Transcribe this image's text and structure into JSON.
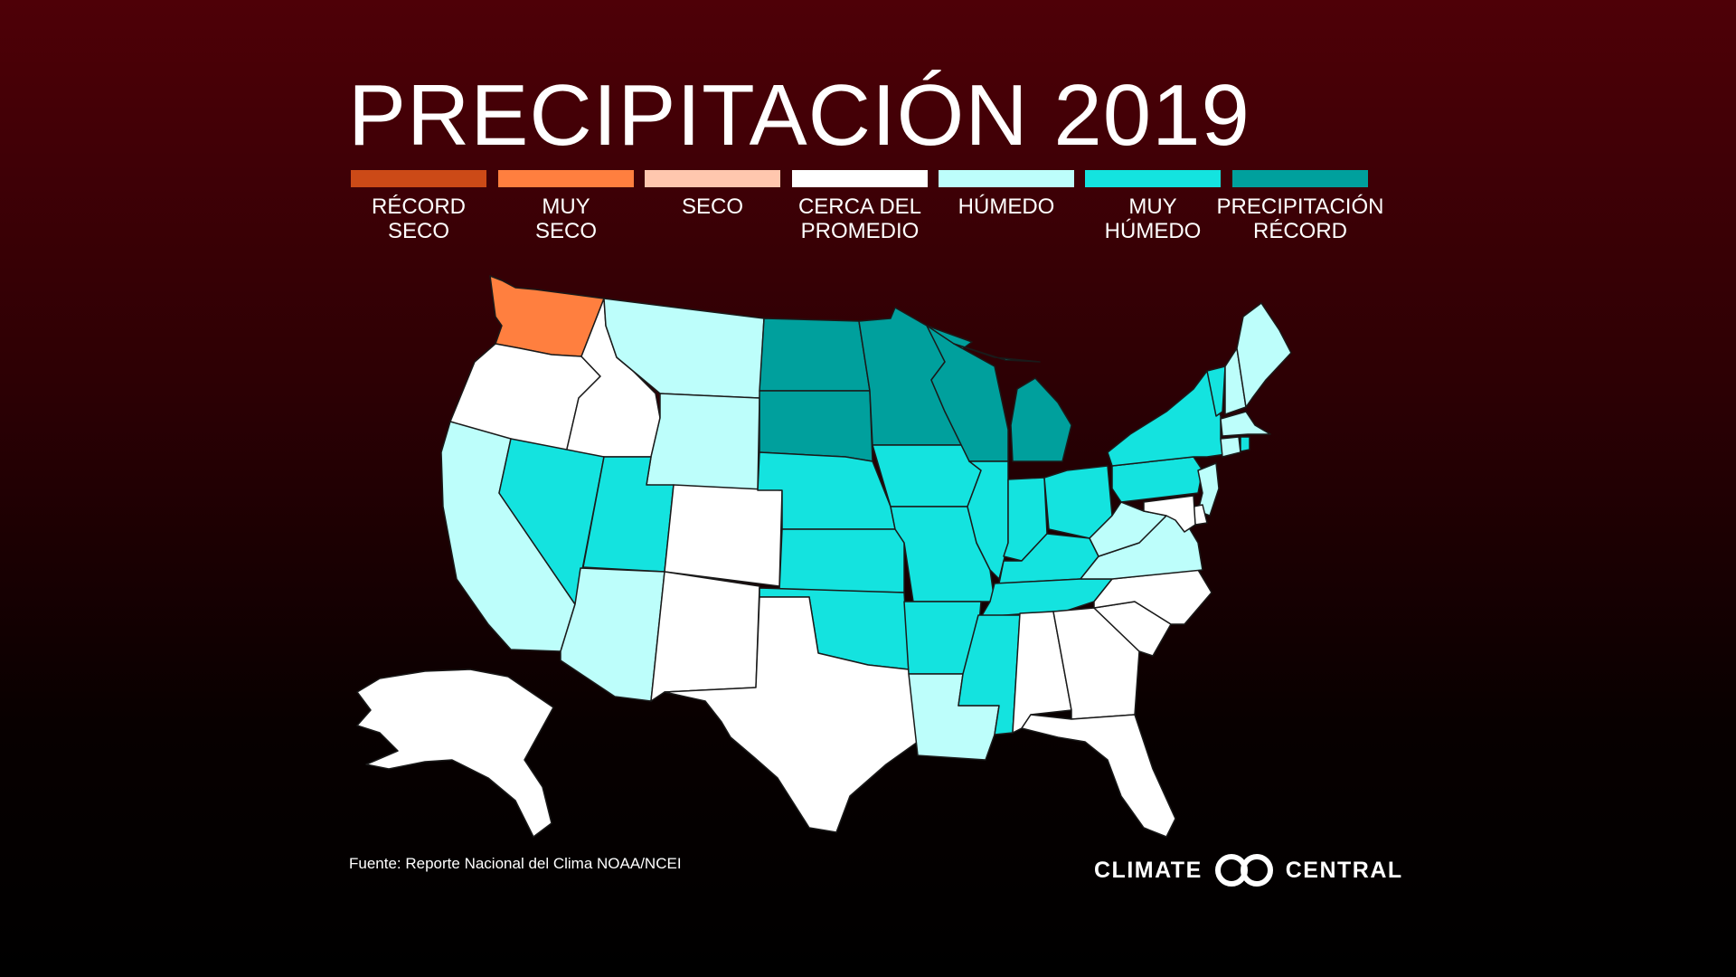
{
  "title": "PRECIPITACIÓN 2019",
  "colors": {
    "record_dry": "#cc4a17",
    "very_dry": "#ff7f3f",
    "dry": "#ffc7ae",
    "near_average": "#ffffff",
    "wet": "#bdfefb",
    "very_wet": "#14e3df",
    "record_wet": "#00a09d"
  },
  "legend": [
    {
      "line1": "RÉCORD",
      "line2": "SECO",
      "color": "#cc4a17"
    },
    {
      "line1": "MUY",
      "line2": "SECO",
      "color": "#ff7f3f"
    },
    {
      "line1": "SECO",
      "line2": "",
      "color": "#ffc7ae"
    },
    {
      "line1": "CERCA DEL",
      "line2": "PROMEDIO",
      "color": "#ffffff"
    },
    {
      "line1": "HÚMEDO",
      "line2": "",
      "color": "#bdfefb"
    },
    {
      "line1": "MUY",
      "line2": "HÚMEDO",
      "color": "#14e3df"
    },
    {
      "line1": "PRECIPITACIÓN",
      "line2": "RÉCORD",
      "color": "#00a09d"
    }
  ],
  "state_categories": {
    "WA": "very_dry",
    "OR": "near_average",
    "ID": "near_average",
    "MT": "wet",
    "WY": "wet",
    "CA": "wet",
    "NV": "very_wet",
    "UT": "very_wet",
    "AZ": "wet",
    "CO": "near_average",
    "NM": "near_average",
    "ND": "record_wet",
    "SD": "record_wet",
    "NE": "very_wet",
    "KS": "very_wet",
    "OK": "very_wet",
    "TX": "near_average",
    "MN": "record_wet",
    "IA": "very_wet",
    "MO": "very_wet",
    "AR": "very_wet",
    "LA": "wet",
    "WI": "record_wet",
    "IL": "very_wet",
    "MI": "record_wet",
    "IN": "very_wet",
    "OH": "very_wet",
    "KY": "very_wet",
    "TN": "very_wet",
    "MS": "very_wet",
    "AL": "near_average",
    "GA": "near_average",
    "FL": "near_average",
    "SC": "near_average",
    "NC": "near_average",
    "VA": "wet",
    "WV": "wet",
    "PA": "very_wet",
    "NY": "very_wet",
    "VT": "very_wet",
    "NH": "wet",
    "ME": "wet",
    "MA": "wet",
    "CT": "wet",
    "RI": "very_wet",
    "NJ": "wet",
    "DE": "near_average",
    "MD": "near_average",
    "AK": "near_average"
  },
  "source": "Fuente: Reporte Nacional del Clima NOAA/NCEI",
  "brand": {
    "left": "CLIMATE",
    "right": "CENTRAL"
  }
}
